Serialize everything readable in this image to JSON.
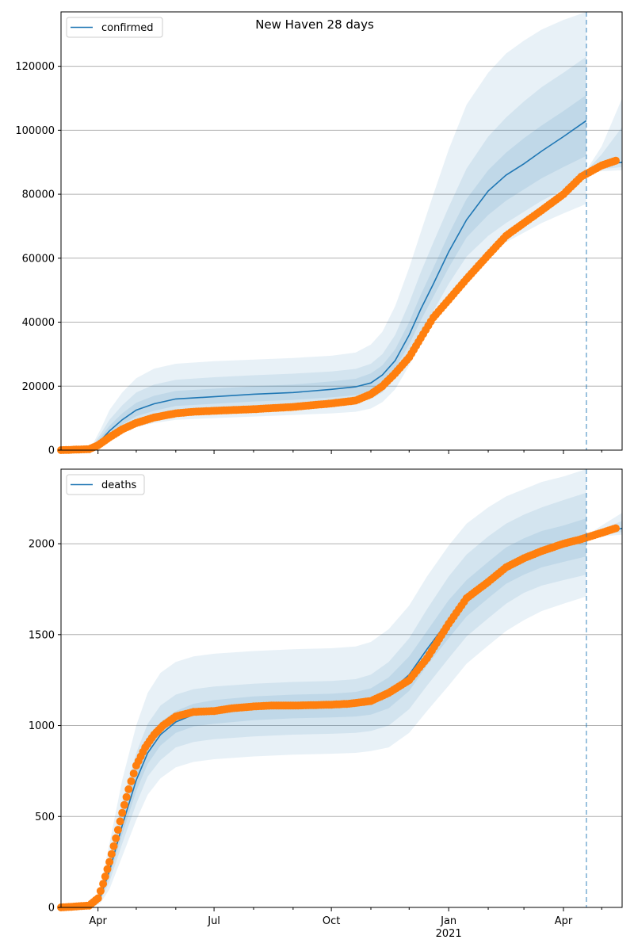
{
  "figure": {
    "title": "New Haven 28 days"
  },
  "colors": {
    "model": "#1f77b4",
    "observed": "#ff7f0e",
    "band": "#1f77b4",
    "grid": "#b0b0b0",
    "axes": "#000000"
  },
  "x_axis": {
    "ticks": [
      {
        "date": "2020-04-01",
        "label": "Apr"
      },
      {
        "date": "2020-07-01",
        "label": "Jul"
      },
      {
        "date": "2020-10-01",
        "label": "Oct"
      },
      {
        "date": "2021-01-01",
        "label": "Jan",
        "sublabel": "2021"
      },
      {
        "date": "2021-04-01",
        "label": "Apr"
      }
    ],
    "minor_ticks": [
      "2020-05-01",
      "2020-06-01",
      "2020-08-01",
      "2020-09-01",
      "2020-11-01",
      "2020-12-01",
      "2021-02-01",
      "2021-03-01",
      "2021-05-01"
    ],
    "range": [
      "2020-03-03",
      "2021-05-17"
    ],
    "forecast_line_date": "2021-04-19"
  },
  "chart_data": [
    {
      "type": "line",
      "legend": "confirmed",
      "legend_position": "top-left",
      "grid": "y",
      "ylim": [
        0,
        137000
      ],
      "yticks": [
        0,
        20000,
        40000,
        60000,
        80000,
        100000,
        120000
      ],
      "ytick_labels": [
        "0",
        "20000",
        "40000",
        "60000",
        "80000",
        "100000",
        "120000"
      ],
      "model": {
        "x": [
          "2020-03-03",
          "2020-03-20",
          "2020-03-28",
          "2020-04-03",
          "2020-04-10",
          "2020-04-20",
          "2020-05-01",
          "2020-05-15",
          "2020-06-01",
          "2020-07-01",
          "2020-08-01",
          "2020-09-01",
          "2020-10-01",
          "2020-10-20",
          "2020-11-01",
          "2020-11-10",
          "2020-11-20",
          "2020-12-01",
          "2020-12-10",
          "2020-12-20",
          "2021-01-01",
          "2021-01-15",
          "2021-02-01",
          "2021-02-15",
          "2021-03-01",
          "2021-03-15",
          "2021-04-01",
          "2021-04-19"
        ],
        "y": [
          0,
          0,
          800,
          3000,
          6000,
          9500,
          12500,
          14500,
          16000,
          16700,
          17500,
          18000,
          19000,
          19800,
          21000,
          23500,
          28000,
          36000,
          44000,
          52000,
          62000,
          72000,
          81000,
          86000,
          89500,
          93500,
          98000,
          103000
        ]
      },
      "model_continuation": {
        "x": [
          "2021-04-19",
          "2021-05-01",
          "2021-05-17"
        ],
        "y": [
          87000,
          89000,
          90000
        ]
      },
      "bands": [
        {
          "x": [
            "2020-03-03",
            "2020-03-20",
            "2020-03-28",
            "2020-04-03",
            "2020-04-10",
            "2020-04-20",
            "2020-05-01",
            "2020-05-15",
            "2020-06-01",
            "2020-07-01",
            "2020-08-01",
            "2020-09-01",
            "2020-10-01",
            "2020-10-20",
            "2020-11-01",
            "2020-11-10",
            "2020-11-20",
            "2020-12-01",
            "2020-12-10",
            "2020-12-20",
            "2021-01-01",
            "2021-01-15",
            "2021-02-01",
            "2021-02-15",
            "2021-03-01",
            "2021-03-15",
            "2021-04-01",
            "2021-04-19"
          ],
          "lower": [
            0,
            0,
            200,
            1200,
            3000,
            5200,
            7200,
            8500,
            9500,
            10000,
            10500,
            11000,
            11500,
            12000,
            13000,
            15000,
            19000,
            26500,
            33000,
            39500,
            47500,
            55000,
            61500,
            65000,
            68000,
            71000,
            74000,
            77000
          ],
          "upper": [
            0,
            0,
            2000,
            6500,
            12500,
            18000,
            22500,
            25500,
            27000,
            27800,
            28300,
            28800,
            29500,
            30500,
            33000,
            37000,
            45000,
            57000,
            68000,
            80000,
            94000,
            108000,
            118000,
            124000,
            128000,
            131500,
            134500,
            137000
          ]
        },
        {
          "x": [
            "2020-03-03",
            "2020-03-20",
            "2020-03-28",
            "2020-04-03",
            "2020-04-10",
            "2020-04-20",
            "2020-05-01",
            "2020-05-15",
            "2020-06-01",
            "2020-07-01",
            "2020-08-01",
            "2020-09-01",
            "2020-10-01",
            "2020-10-20",
            "2020-11-01",
            "2020-11-10",
            "2020-11-20",
            "2020-12-01",
            "2020-12-10",
            "2020-12-20",
            "2021-01-01",
            "2021-01-15",
            "2021-02-01",
            "2021-02-15",
            "2021-03-01",
            "2021-03-15",
            "2021-04-01",
            "2021-04-19"
          ],
          "lower": [
            0,
            0,
            400,
            1800,
            4000,
            6800,
            9000,
            10500,
            11800,
            12400,
            13000,
            13500,
            14200,
            14800,
            16000,
            18000,
            22500,
            29500,
            36500,
            43500,
            52000,
            60500,
            67000,
            71000,
            74500,
            78000,
            81500,
            85000
          ],
          "upper": [
            0,
            0,
            1500,
            5000,
            9500,
            14000,
            18000,
            20500,
            22000,
            22800,
            23400,
            23900,
            24600,
            25400,
            27000,
            30000,
            36000,
            46000,
            55500,
            65000,
            76000,
            88000,
            98000,
            104000,
            109000,
            113500,
            118000,
            123000
          ]
        },
        {
          "x": [
            "2020-03-03",
            "2020-03-20",
            "2020-03-28",
            "2020-04-03",
            "2020-04-10",
            "2020-04-20",
            "2020-05-01",
            "2020-05-15",
            "2020-06-01",
            "2020-07-01",
            "2020-08-01",
            "2020-09-01",
            "2020-10-01",
            "2020-10-20",
            "2020-11-01",
            "2020-11-10",
            "2020-11-20",
            "2020-12-01",
            "2020-12-10",
            "2020-12-20",
            "2021-01-01",
            "2021-01-15",
            "2021-02-01",
            "2021-02-15",
            "2021-03-01",
            "2021-03-15",
            "2021-04-01",
            "2021-04-19"
          ],
          "lower": [
            0,
            0,
            550,
            2300,
            4800,
            8000,
            10600,
            12300,
            13800,
            14500,
            15200,
            15700,
            16500,
            17200,
            18500,
            20800,
            25500,
            33000,
            40500,
            48000,
            57000,
            66500,
            73500,
            78000,
            81500,
            85000,
            88500,
            92000
          ],
          "upper": [
            0,
            0,
            1150,
            4000,
            7600,
            11500,
            14800,
            17000,
            18500,
            19200,
            20000,
            20500,
            21500,
            22300,
            24000,
            26500,
            31500,
            40000,
            48500,
            57000,
            67500,
            78500,
            87500,
            93000,
            97500,
            101500,
            106000,
            111000
          ]
        }
      ],
      "continuation_bands": [
        {
          "x": [
            "2021-04-19",
            "2021-05-01",
            "2021-05-17"
          ],
          "lower": [
            86500,
            87200,
            87500
          ],
          "upper": [
            87500,
            95000,
            110000
          ]
        },
        {
          "x": [
            "2021-04-19",
            "2021-05-01",
            "2021-05-17"
          ],
          "lower": [
            86700,
            87800,
            88500
          ],
          "upper": [
            87300,
            92500,
            101000
          ]
        }
      ],
      "observed": {
        "x": [
          "2020-03-03",
          "2020-03-25",
          "2020-04-01",
          "2020-04-10",
          "2020-04-20",
          "2020-05-01",
          "2020-05-15",
          "2020-06-01",
          "2020-06-15",
          "2020-07-01",
          "2020-08-01",
          "2020-09-01",
          "2020-10-01",
          "2020-10-20",
          "2020-11-01",
          "2020-11-10",
          "2020-11-20",
          "2020-12-01",
          "2020-12-10",
          "2020-12-20",
          "2021-01-01",
          "2021-01-15",
          "2021-02-01",
          "2021-02-15",
          "2021-03-01",
          "2021-03-15",
          "2021-04-01",
          "2021-04-15",
          "2021-05-01",
          "2021-05-12"
        ],
        "y": [
          0,
          300,
          1500,
          4000,
          6500,
          8500,
          10200,
          11500,
          12000,
          12300,
          12800,
          13500,
          14600,
          15500,
          17500,
          20000,
          24000,
          29000,
          35000,
          41500,
          47000,
          53500,
          61000,
          67000,
          71000,
          75000,
          80000,
          85500,
          89000,
          90500
        ]
      }
    },
    {
      "type": "line",
      "legend": "deaths",
      "legend_position": "top-left",
      "grid": "y",
      "ylim": [
        0,
        2410
      ],
      "yticks": [
        0,
        500,
        1000,
        1500,
        2000
      ],
      "ytick_labels": [
        "0",
        "500",
        "1000",
        "1500",
        "2000"
      ],
      "model": {
        "x": [
          "2020-03-03",
          "2020-03-28",
          "2020-04-03",
          "2020-04-10",
          "2020-04-20",
          "2020-05-01",
          "2020-05-10",
          "2020-05-20",
          "2020-06-01",
          "2020-06-15",
          "2020-07-01",
          "2020-08-01",
          "2020-09-01",
          "2020-10-01",
          "2020-10-20",
          "2020-11-01",
          "2020-11-15",
          "2020-12-01",
          "2020-12-15",
          "2021-01-01",
          "2021-01-15",
          "2021-02-01",
          "2021-02-15",
          "2021-03-01",
          "2021-03-15",
          "2021-04-01",
          "2021-04-19"
        ],
        "y": [
          0,
          5,
          60,
          200,
          450,
          700,
          850,
          950,
          1020,
          1060,
          1080,
          1100,
          1110,
          1115,
          1120,
          1135,
          1180,
          1280,
          1420,
          1580,
          1700,
          1800,
          1880,
          1930,
          1970,
          2000,
          2030
        ]
      },
      "model_continuation": {
        "x": [
          "2021-04-19",
          "2021-05-01",
          "2021-05-17"
        ],
        "y": [
          2035,
          2060,
          2085
        ]
      },
      "bands": [
        {
          "x": [
            "2020-03-03",
            "2020-03-28",
            "2020-04-03",
            "2020-04-10",
            "2020-04-20",
            "2020-05-01",
            "2020-05-10",
            "2020-05-20",
            "2020-06-01",
            "2020-06-15",
            "2020-07-01",
            "2020-08-01",
            "2020-09-01",
            "2020-10-01",
            "2020-10-20",
            "2020-11-01",
            "2020-11-15",
            "2020-12-01",
            "2020-12-15",
            "2021-01-01",
            "2021-01-15",
            "2021-02-01",
            "2021-02-15",
            "2021-03-01",
            "2021-03-15",
            "2021-04-01",
            "2021-04-19"
          ],
          "lower": [
            0,
            0,
            25,
            100,
            280,
            480,
            620,
            710,
            770,
            800,
            815,
            830,
            840,
            845,
            850,
            860,
            880,
            960,
            1080,
            1220,
            1340,
            1440,
            1520,
            1580,
            1630,
            1670,
            1710
          ],
          "upper": [
            0,
            15,
            120,
            350,
            700,
            1000,
            1180,
            1290,
            1350,
            1380,
            1395,
            1410,
            1420,
            1425,
            1435,
            1460,
            1530,
            1660,
            1820,
            1990,
            2110,
            2200,
            2260,
            2300,
            2340,
            2370,
            2410
          ]
        },
        {
          "x": [
            "2020-03-03",
            "2020-03-28",
            "2020-04-03",
            "2020-04-10",
            "2020-04-20",
            "2020-05-01",
            "2020-05-10",
            "2020-05-20",
            "2020-06-01",
            "2020-06-15",
            "2020-07-01",
            "2020-08-01",
            "2020-09-01",
            "2020-10-01",
            "2020-10-20",
            "2020-11-01",
            "2020-11-15",
            "2020-12-01",
            "2020-12-15",
            "2021-01-01",
            "2021-01-15",
            "2021-02-01",
            "2021-02-15",
            "2021-03-01",
            "2021-03-15",
            "2021-04-01",
            "2021-04-19"
          ],
          "lower": [
            0,
            2,
            40,
            140,
            350,
            570,
            720,
            810,
            880,
            910,
            925,
            940,
            950,
            955,
            960,
            970,
            1000,
            1090,
            1220,
            1370,
            1490,
            1590,
            1670,
            1730,
            1770,
            1800,
            1830
          ],
          "upper": [
            0,
            10,
            95,
            280,
            580,
            850,
            1010,
            1110,
            1170,
            1200,
            1215,
            1230,
            1240,
            1245,
            1255,
            1280,
            1350,
            1480,
            1640,
            1820,
            1940,
            2040,
            2110,
            2160,
            2200,
            2240,
            2280
          ]
        },
        {
          "x": [
            "2020-03-03",
            "2020-03-28",
            "2020-04-03",
            "2020-04-10",
            "2020-04-20",
            "2020-05-01",
            "2020-05-10",
            "2020-05-20",
            "2020-06-01",
            "2020-06-15",
            "2020-07-01",
            "2020-08-01",
            "2020-09-01",
            "2020-10-01",
            "2020-10-20",
            "2020-11-01",
            "2020-11-15",
            "2020-12-01",
            "2020-12-15",
            "2021-01-01",
            "2021-01-15",
            "2021-02-01",
            "2021-02-15",
            "2021-03-01",
            "2021-03-15",
            "2021-04-01",
            "2021-04-19"
          ],
          "lower": [
            0,
            3,
            50,
            170,
            400,
            640,
            790,
            890,
            960,
            995,
            1010,
            1030,
            1040,
            1045,
            1050,
            1060,
            1095,
            1190,
            1330,
            1480,
            1600,
            1700,
            1780,
            1830,
            1870,
            1900,
            1930
          ],
          "upper": [
            0,
            7,
            75,
            240,
            510,
            770,
            920,
            1020,
            1080,
            1120,
            1140,
            1160,
            1170,
            1175,
            1185,
            1205,
            1265,
            1380,
            1520,
            1690,
            1800,
            1900,
            1980,
            2030,
            2070,
            2100,
            2140
          ]
        }
      ],
      "continuation_bands": [
        {
          "x": [
            "2021-04-19",
            "2021-05-01",
            "2021-05-17"
          ],
          "lower": [
            2025,
            2040,
            2050
          ],
          "upper": [
            2045,
            2100,
            2170
          ]
        },
        {
          "x": [
            "2021-04-19",
            "2021-05-01",
            "2021-05-17"
          ],
          "lower": [
            2030,
            2050,
            2065
          ],
          "upper": [
            2040,
            2080,
            2125
          ]
        }
      ],
      "observed": {
        "x": [
          "2020-03-03",
          "2020-03-25",
          "2020-04-01",
          "2020-04-05",
          "2020-04-10",
          "2020-04-15",
          "2020-04-20",
          "2020-04-25",
          "2020-05-01",
          "2020-05-08",
          "2020-05-15",
          "2020-05-22",
          "2020-06-01",
          "2020-06-15",
          "2020-07-01",
          "2020-07-15",
          "2020-08-01",
          "2020-08-15",
          "2020-09-01",
          "2020-09-15",
          "2020-10-01",
          "2020-10-15",
          "2020-11-01",
          "2020-11-15",
          "2020-12-01",
          "2020-12-15",
          "2021-01-01",
          "2021-01-15",
          "2021-02-01",
          "2021-02-15",
          "2021-03-01",
          "2021-03-15",
          "2021-04-01",
          "2021-04-15",
          "2021-05-01",
          "2021-05-12"
        ],
        "y": [
          0,
          10,
          50,
          130,
          250,
          380,
          520,
          650,
          780,
          880,
          950,
          1000,
          1050,
          1075,
          1080,
          1095,
          1105,
          1110,
          1110,
          1112,
          1115,
          1120,
          1135,
          1180,
          1250,
          1370,
          1560,
          1700,
          1790,
          1870,
          1920,
          1960,
          2000,
          2025,
          2060,
          2085
        ]
      }
    }
  ]
}
